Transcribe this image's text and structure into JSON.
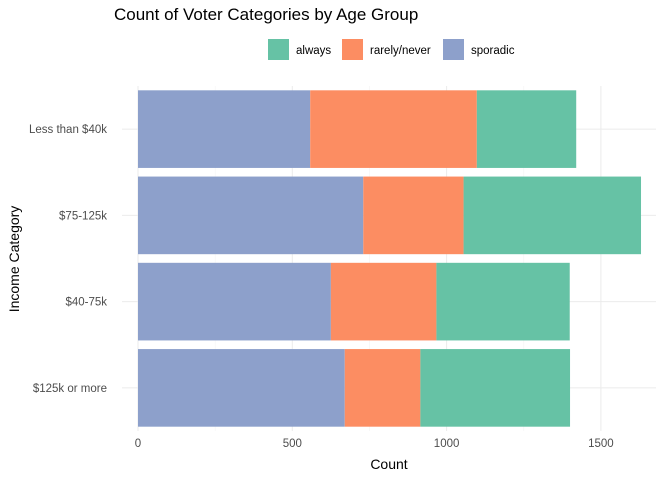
{
  "chart_data": {
    "type": "bar",
    "orientation": "horizontal",
    "stacked": true,
    "title": "Count of Voter Categories by Age Group",
    "xlabel": "Count",
    "ylabel": "Income Category",
    "categories": [
      "$125k or more",
      "$40-75k",
      "$75-125k",
      "Less than $40k"
    ],
    "stack_order": [
      "sporadic",
      "rarely/never",
      "always"
    ],
    "series": [
      {
        "name": "always",
        "color": "#66C2A5",
        "values": [
          485,
          432,
          575,
          322
        ]
      },
      {
        "name": "rarely/never",
        "color": "#FC8D62",
        "values": [
          245,
          342,
          325,
          540
        ]
      },
      {
        "name": "sporadic",
        "color": "#8DA0CB",
        "values": [
          670,
          625,
          730,
          558
        ]
      }
    ],
    "legend": {
      "position": "top",
      "entries": [
        "always",
        "rarely/never",
        "sporadic"
      ]
    },
    "xlim": [
      0,
      1700
    ],
    "xticks": [
      0,
      500,
      1000,
      1500
    ],
    "xtick_labels": [
      "0",
      "500",
      "1000",
      "1500"
    ],
    "grid": true
  }
}
